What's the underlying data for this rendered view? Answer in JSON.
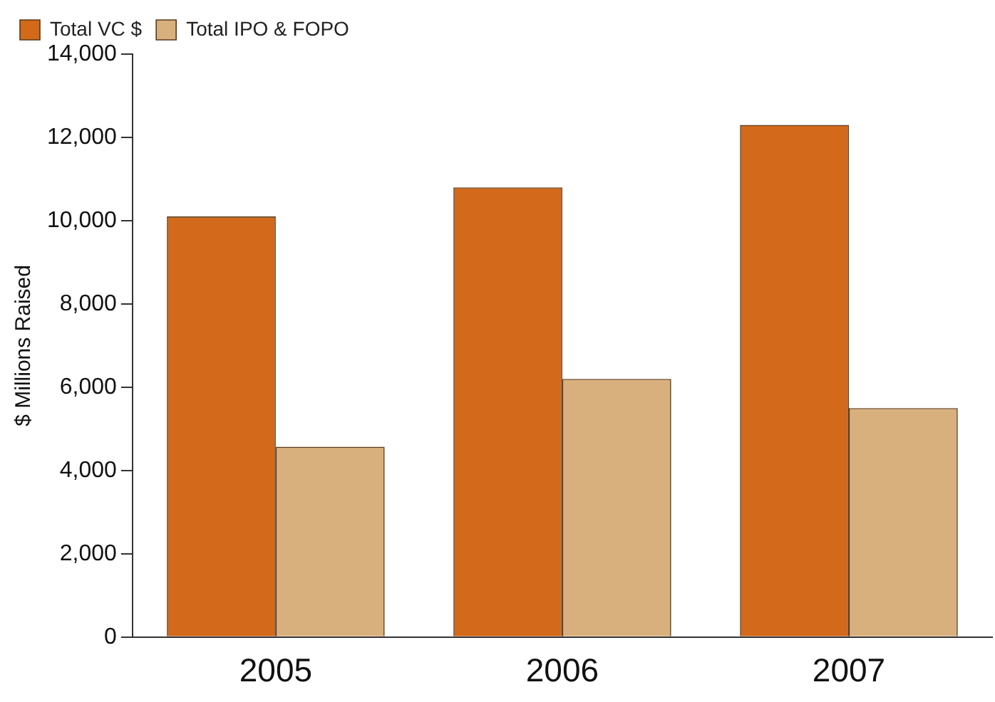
{
  "chart_data": {
    "type": "bar",
    "ylabel": "$ Millions Raised",
    "categories": [
      "2005",
      "2006",
      "2007"
    ],
    "series": [
      {
        "name": "Total VC $",
        "color": "#d2691b",
        "values": [
          10100,
          10800,
          12300
        ]
      },
      {
        "name": "Total IPO & FOPO",
        "color": "#d8b07e",
        "values": [
          4570,
          6200,
          5500
        ]
      }
    ],
    "ylim": [
      0,
      14000
    ],
    "yticks": [
      0,
      {
        "value": 2000,
        "label": "2,000"
      },
      {
        "value": 4000,
        "label": "4,000"
      },
      {
        "value": 6000,
        "label": "6,000"
      },
      {
        "value": 8000,
        "label": "8,000"
      },
      {
        "value": 10000,
        "label": "10,000"
      },
      {
        "value": 12000,
        "label": "12,000"
      },
      {
        "value": 14000,
        "label": "14,000"
      }
    ],
    "grid": false,
    "legend": "top left"
  }
}
